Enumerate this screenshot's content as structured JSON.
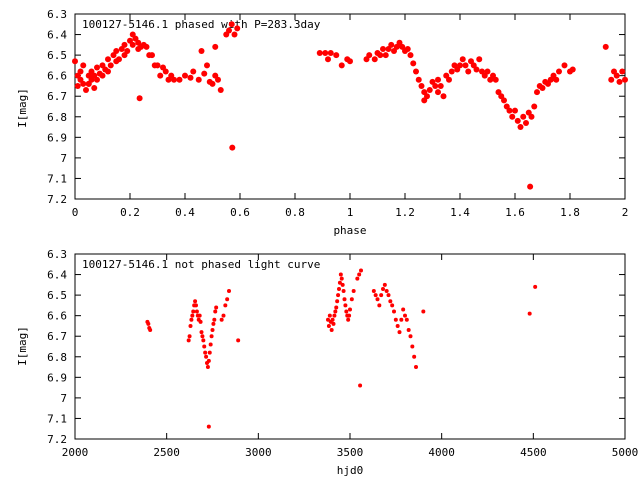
{
  "chart_data": [
    {
      "type": "scatter",
      "title": "100127-5146.1 phased with P=283.3day",
      "xlabel": "phase",
      "ylabel": "I[mag]",
      "xlim": [
        0,
        2
      ],
      "ylim": [
        7.2,
        6.3
      ],
      "y_inverted": true,
      "grid": false,
      "marker": "filled-circle",
      "color": "#ff0000",
      "xticks": [
        "0",
        "0.2",
        "0.4",
        "0.6",
        "0.8",
        "1",
        "1.2",
        "1.4",
        "1.6",
        "1.8",
        "2"
      ],
      "yticks": [
        "6.3",
        "6.4",
        "6.5",
        "6.6",
        "6.7",
        "6.8",
        "6.9",
        "7",
        "7.1",
        "7.2"
      ],
      "series": [
        {
          "points": [
            [
              0.0,
              6.53
            ],
            [
              0.01,
              6.6
            ],
            [
              0.01,
              6.65
            ],
            [
              0.02,
              6.58
            ],
            [
              0.02,
              6.62
            ],
            [
              0.03,
              6.55
            ],
            [
              0.03,
              6.64
            ],
            [
              0.04,
              6.67
            ],
            [
              0.05,
              6.6
            ],
            [
              0.05,
              6.64
            ],
            [
              0.06,
              6.62
            ],
            [
              0.06,
              6.58
            ],
            [
              0.07,
              6.66
            ],
            [
              0.07,
              6.6
            ],
            [
              0.08,
              6.56
            ],
            [
              0.08,
              6.62
            ],
            [
              0.09,
              6.59
            ],
            [
              0.1,
              6.55
            ],
            [
              0.1,
              6.6
            ],
            [
              0.11,
              6.57
            ],
            [
              0.12,
              6.52
            ],
            [
              0.12,
              6.58
            ],
            [
              0.13,
              6.55
            ],
            [
              0.14,
              6.5
            ],
            [
              0.15,
              6.53
            ],
            [
              0.15,
              6.48
            ],
            [
              0.16,
              6.52
            ],
            [
              0.17,
              6.47
            ],
            [
              0.18,
              6.5
            ],
            [
              0.18,
              6.45
            ],
            [
              0.19,
              6.48
            ],
            [
              0.2,
              6.43
            ],
            [
              0.21,
              6.45
            ],
            [
              0.21,
              6.4
            ],
            [
              0.22,
              6.42
            ],
            [
              0.23,
              6.44
            ],
            [
              0.23,
              6.47
            ],
            [
              0.24,
              6.46
            ],
            [
              0.25,
              6.45
            ],
            [
              0.26,
              6.46
            ],
            [
              0.27,
              6.5
            ],
            [
              0.28,
              6.5
            ],
            [
              0.29,
              6.55
            ],
            [
              0.3,
              6.55
            ],
            [
              0.31,
              6.6
            ],
            [
              0.32,
              6.56
            ],
            [
              0.33,
              6.58
            ],
            [
              0.34,
              6.62
            ],
            [
              0.35,
              6.6
            ],
            [
              0.36,
              6.62
            ],
            [
              0.38,
              6.62
            ],
            [
              0.4,
              6.6
            ],
            [
              0.42,
              6.61
            ],
            [
              0.43,
              6.58
            ],
            [
              0.45,
              6.62
            ],
            [
              0.47,
              6.59
            ],
            [
              0.48,
              6.55
            ],
            [
              0.49,
              6.63
            ],
            [
              0.5,
              6.64
            ],
            [
              0.51,
              6.6
            ],
            [
              0.52,
              6.62
            ],
            [
              0.53,
              6.67
            ],
            [
              0.55,
              6.4
            ],
            [
              0.56,
              6.38
            ],
            [
              0.57,
              6.35
            ],
            [
              0.58,
              6.4
            ],
            [
              0.59,
              6.37
            ],
            [
              0.05,
              6.64
            ],
            [
              0.235,
              6.71
            ],
            [
              0.572,
              6.95
            ],
            [
              0.51,
              6.46
            ],
            [
              0.46,
              6.48
            ],
            [
              0.89,
              6.49
            ],
            [
              0.91,
              6.49
            ],
            [
              0.92,
              6.52
            ],
            [
              0.93,
              6.49
            ],
            [
              0.95,
              6.5
            ],
            [
              0.97,
              6.55
            ],
            [
              0.99,
              6.52
            ],
            [
              1.0,
              6.53
            ],
            [
              1.06,
              6.52
            ],
            [
              1.07,
              6.5
            ],
            [
              1.09,
              6.52
            ],
            [
              1.1,
              6.49
            ],
            [
              1.11,
              6.5
            ],
            [
              1.12,
              6.47
            ],
            [
              1.13,
              6.5
            ],
            [
              1.14,
              6.47
            ],
            [
              1.15,
              6.45
            ],
            [
              1.16,
              6.48
            ],
            [
              1.17,
              6.46
            ],
            [
              1.18,
              6.44
            ],
            [
              1.19,
              6.46
            ],
            [
              1.2,
              6.48
            ],
            [
              1.21,
              6.47
            ],
            [
              1.22,
              6.5
            ],
            [
              1.23,
              6.54
            ],
            [
              1.24,
              6.58
            ],
            [
              1.25,
              6.62
            ],
            [
              1.26,
              6.65
            ],
            [
              1.27,
              6.68
            ],
            [
              1.28,
              6.7
            ],
            [
              1.29,
              6.67
            ],
            [
              1.3,
              6.63
            ],
            [
              1.31,
              6.65
            ],
            [
              1.32,
              6.62
            ],
            [
              1.33,
              6.65
            ],
            [
              1.34,
              6.7
            ],
            [
              1.35,
              6.6
            ],
            [
              1.36,
              6.62
            ],
            [
              1.37,
              6.58
            ],
            [
              1.38,
              6.55
            ],
            [
              1.39,
              6.57
            ],
            [
              1.4,
              6.55
            ],
            [
              1.41,
              6.52
            ],
            [
              1.42,
              6.55
            ],
            [
              1.43,
              6.58
            ],
            [
              1.44,
              6.53
            ],
            [
              1.45,
              6.55
            ],
            [
              1.46,
              6.57
            ],
            [
              1.47,
              6.52
            ],
            [
              1.48,
              6.58
            ],
            [
              1.49,
              6.6
            ],
            [
              1.5,
              6.58
            ],
            [
              1.51,
              6.62
            ],
            [
              1.52,
              6.6
            ],
            [
              1.53,
              6.62
            ],
            [
              1.54,
              6.68
            ],
            [
              1.55,
              6.7
            ],
            [
              1.56,
              6.72
            ],
            [
              1.57,
              6.75
            ],
            [
              1.58,
              6.77
            ],
            [
              1.59,
              6.8
            ],
            [
              1.6,
              6.77
            ],
            [
              1.61,
              6.82
            ],
            [
              1.62,
              6.85
            ],
            [
              1.63,
              6.8
            ],
            [
              1.64,
              6.83
            ],
            [
              1.65,
              6.78
            ],
            [
              1.66,
              6.8
            ],
            [
              1.67,
              6.75
            ],
            [
              1.68,
              6.68
            ],
            [
              1.69,
              6.65
            ],
            [
              1.7,
              6.66
            ],
            [
              1.71,
              6.63
            ],
            [
              1.72,
              6.64
            ],
            [
              1.73,
              6.62
            ],
            [
              1.74,
              6.6
            ],
            [
              1.75,
              6.62
            ],
            [
              1.76,
              6.58
            ],
            [
              1.78,
              6.55
            ],
            [
              1.8,
              6.58
            ],
            [
              1.81,
              6.57
            ],
            [
              1.93,
              6.46
            ],
            [
              1.95,
              6.62
            ],
            [
              1.96,
              6.58
            ],
            [
              1.97,
              6.6
            ],
            [
              1.98,
              6.63
            ],
            [
              1.99,
              6.58
            ],
            [
              2.0,
              6.62
            ],
            [
              1.655,
              7.14
            ],
            [
              1.27,
              6.72
            ],
            [
              1.32,
              6.68
            ]
          ]
        }
      ]
    },
    {
      "type": "scatter",
      "title": "100127-5146.1 not phased light curve",
      "xlabel": "hjd0",
      "ylabel": "I[mag]",
      "xlim": [
        2000,
        5000
      ],
      "ylim": [
        7.2,
        6.3
      ],
      "y_inverted": true,
      "grid": false,
      "marker": "small-filled-circle",
      "color": "#ff0000",
      "xticks": [
        "2000",
        "2500",
        "3000",
        "3500",
        "4000",
        "4500",
        "5000"
      ],
      "yticks": [
        "6.3",
        "6.4",
        "6.5",
        "6.6",
        "6.7",
        "6.8",
        "6.9",
        "7",
        "7.1",
        "7.2"
      ],
      "series": [
        {
          "points": [
            [
              2395,
              6.63
            ],
            [
              2400,
              6.64
            ],
            [
              2405,
              6.66
            ],
            [
              2410,
              6.67
            ],
            [
              2620,
              6.72
            ],
            [
              2625,
              6.7
            ],
            [
              2630,
              6.65
            ],
            [
              2635,
              6.62
            ],
            [
              2640,
              6.6
            ],
            [
              2645,
              6.58
            ],
            [
              2650,
              6.55
            ],
            [
              2655,
              6.53
            ],
            [
              2660,
              6.55
            ],
            [
              2665,
              6.58
            ],
            [
              2670,
              6.6
            ],
            [
              2675,
              6.62
            ],
            [
              2680,
              6.6
            ],
            [
              2685,
              6.63
            ],
            [
              2690,
              6.68
            ],
            [
              2695,
              6.7
            ],
            [
              2700,
              6.72
            ],
            [
              2705,
              6.75
            ],
            [
              2710,
              6.78
            ],
            [
              2715,
              6.8
            ],
            [
              2720,
              6.83
            ],
            [
              2725,
              6.85
            ],
            [
              2730,
              6.82
            ],
            [
              2735,
              6.78
            ],
            [
              2740,
              6.74
            ],
            [
              2745,
              6.7
            ],
            [
              2750,
              6.67
            ],
            [
              2755,
              6.64
            ],
            [
              2760,
              6.62
            ],
            [
              2765,
              6.58
            ],
            [
              2770,
              6.56
            ],
            [
              2800,
              6.62
            ],
            [
              2810,
              6.6
            ],
            [
              2820,
              6.55
            ],
            [
              2830,
              6.52
            ],
            [
              2840,
              6.48
            ],
            [
              2890,
              6.72
            ],
            [
              2730,
              7.14
            ],
            [
              3380,
              6.62
            ],
            [
              3385,
              6.65
            ],
            [
              3390,
              6.6
            ],
            [
              3395,
              6.63
            ],
            [
              3400,
              6.67
            ],
            [
              3405,
              6.62
            ],
            [
              3410,
              6.64
            ],
            [
              3415,
              6.6
            ],
            [
              3420,
              6.58
            ],
            [
              3425,
              6.56
            ],
            [
              3430,
              6.53
            ],
            [
              3435,
              6.5
            ],
            [
              3440,
              6.47
            ],
            [
              3445,
              6.44
            ],
            [
              3450,
              6.4
            ],
            [
              3455,
              6.42
            ],
            [
              3460,
              6.45
            ],
            [
              3465,
              6.48
            ],
            [
              3470,
              6.52
            ],
            [
              3475,
              6.55
            ],
            [
              3480,
              6.58
            ],
            [
              3485,
              6.6
            ],
            [
              3490,
              6.62
            ],
            [
              3495,
              6.6
            ],
            [
              3500,
              6.57
            ],
            [
              3510,
              6.52
            ],
            [
              3520,
              6.48
            ],
            [
              3540,
              6.42
            ],
            [
              3550,
              6.4
            ],
            [
              3560,
              6.38
            ],
            [
              3555,
              6.94
            ],
            [
              3630,
              6.48
            ],
            [
              3640,
              6.5
            ],
            [
              3650,
              6.52
            ],
            [
              3660,
              6.55
            ],
            [
              3670,
              6.5
            ],
            [
              3680,
              6.47
            ],
            [
              3690,
              6.45
            ],
            [
              3700,
              6.48
            ],
            [
              3710,
              6.5
            ],
            [
              3720,
              6.53
            ],
            [
              3730,
              6.55
            ],
            [
              3740,
              6.58
            ],
            [
              3750,
              6.62
            ],
            [
              3760,
              6.65
            ],
            [
              3770,
              6.68
            ],
            [
              3780,
              6.62
            ],
            [
              3790,
              6.57
            ],
            [
              3800,
              6.6
            ],
            [
              3810,
              6.62
            ],
            [
              3820,
              6.67
            ],
            [
              3830,
              6.7
            ],
            [
              3840,
              6.75
            ],
            [
              3850,
              6.8
            ],
            [
              3860,
              6.85
            ],
            [
              3900,
              6.58
            ],
            [
              4480,
              6.59
            ],
            [
              4510,
              6.46
            ]
          ]
        }
      ]
    }
  ]
}
